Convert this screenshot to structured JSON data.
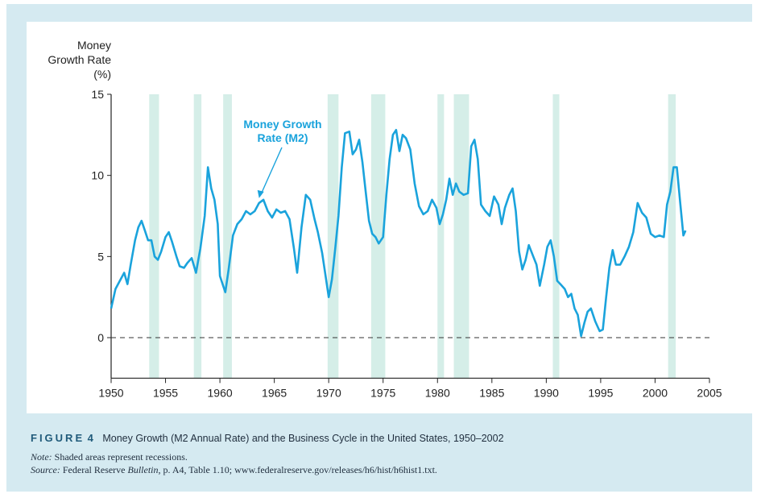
{
  "chart_data": {
    "type": "line",
    "ylabel_lines": [
      "Money",
      "Growth Rate",
      "(%)"
    ],
    "xlim": [
      1950,
      2005
    ],
    "ylim": [
      -2.5,
      15
    ],
    "xticks": [
      1950,
      1955,
      1960,
      1965,
      1970,
      1975,
      1980,
      1985,
      1990,
      1995,
      2000,
      2005
    ],
    "yticks": [
      0,
      5,
      10,
      15
    ],
    "annotation": {
      "lines": [
        "Money Growth",
        "Rate (M2)"
      ]
    },
    "reference_line": {
      "y": 0,
      "style": "dashed"
    },
    "recessions": [
      [
        1953.5,
        1954.4
      ],
      [
        1957.6,
        1958.3
      ],
      [
        1960.3,
        1961.1
      ],
      [
        1969.9,
        1970.9
      ],
      [
        1973.9,
        1975.2
      ],
      [
        1980.0,
        1980.6
      ],
      [
        1981.5,
        1982.9
      ],
      [
        1990.6,
        1991.2
      ],
      [
        2001.2,
        2001.9
      ]
    ],
    "series": [
      {
        "color": "#1aa3dc",
        "points": [
          [
            1950.0,
            1.8
          ],
          [
            1950.4,
            3.0
          ],
          [
            1950.8,
            3.5
          ],
          [
            1951.2,
            4.0
          ],
          [
            1951.5,
            3.3
          ],
          [
            1951.8,
            4.5
          ],
          [
            1952.2,
            6.0
          ],
          [
            1952.5,
            6.8
          ],
          [
            1952.8,
            7.2
          ],
          [
            1953.1,
            6.6
          ],
          [
            1953.4,
            6.0
          ],
          [
            1953.7,
            6.0
          ],
          [
            1954.0,
            5.0
          ],
          [
            1954.3,
            4.8
          ],
          [
            1954.6,
            5.3
          ],
          [
            1955.0,
            6.2
          ],
          [
            1955.3,
            6.5
          ],
          [
            1955.6,
            5.9
          ],
          [
            1956.0,
            5.0
          ],
          [
            1956.3,
            4.4
          ],
          [
            1956.7,
            4.3
          ],
          [
            1957.0,
            4.6
          ],
          [
            1957.4,
            4.9
          ],
          [
            1957.8,
            4.0
          ],
          [
            1958.2,
            5.5
          ],
          [
            1958.6,
            7.5
          ],
          [
            1958.9,
            10.5
          ],
          [
            1959.2,
            9.2
          ],
          [
            1959.5,
            8.5
          ],
          [
            1959.8,
            7.0
          ],
          [
            1960.0,
            3.8
          ],
          [
            1960.3,
            3.2
          ],
          [
            1960.5,
            2.8
          ],
          [
            1960.8,
            4.2
          ],
          [
            1961.2,
            6.3
          ],
          [
            1961.6,
            7.0
          ],
          [
            1962.0,
            7.3
          ],
          [
            1962.4,
            7.8
          ],
          [
            1962.8,
            7.6
          ],
          [
            1963.2,
            7.8
          ],
          [
            1963.6,
            8.3
          ],
          [
            1964.0,
            8.5
          ],
          [
            1964.4,
            7.8
          ],
          [
            1964.8,
            7.4
          ],
          [
            1965.2,
            7.9
          ],
          [
            1965.6,
            7.7
          ],
          [
            1966.0,
            7.8
          ],
          [
            1966.4,
            7.3
          ],
          [
            1966.8,
            5.5
          ],
          [
            1967.1,
            4.0
          ],
          [
            1967.5,
            6.8
          ],
          [
            1967.9,
            8.8
          ],
          [
            1968.3,
            8.5
          ],
          [
            1968.7,
            7.3
          ],
          [
            1969.0,
            6.5
          ],
          [
            1969.4,
            5.2
          ],
          [
            1969.8,
            3.4
          ],
          [
            1970.0,
            2.5
          ],
          [
            1970.3,
            3.6
          ],
          [
            1970.6,
            5.5
          ],
          [
            1970.9,
            7.5
          ],
          [
            1971.2,
            10.5
          ],
          [
            1971.5,
            12.6
          ],
          [
            1971.9,
            12.7
          ],
          [
            1972.2,
            11.3
          ],
          [
            1972.5,
            11.6
          ],
          [
            1972.8,
            12.2
          ],
          [
            1973.1,
            10.8
          ],
          [
            1973.4,
            9.0
          ],
          [
            1973.7,
            7.2
          ],
          [
            1974.0,
            6.4
          ],
          [
            1974.3,
            6.2
          ],
          [
            1974.6,
            5.8
          ],
          [
            1975.0,
            6.2
          ],
          [
            1975.3,
            8.8
          ],
          [
            1975.6,
            11.0
          ],
          [
            1975.9,
            12.5
          ],
          [
            1976.2,
            12.8
          ],
          [
            1976.5,
            11.5
          ],
          [
            1976.8,
            12.5
          ],
          [
            1977.1,
            12.3
          ],
          [
            1977.5,
            11.6
          ],
          [
            1977.9,
            9.5
          ],
          [
            1978.3,
            8.1
          ],
          [
            1978.7,
            7.6
          ],
          [
            1979.1,
            7.8
          ],
          [
            1979.5,
            8.5
          ],
          [
            1979.9,
            8.0
          ],
          [
            1980.2,
            7.0
          ],
          [
            1980.5,
            7.6
          ],
          [
            1980.8,
            8.5
          ],
          [
            1981.1,
            9.8
          ],
          [
            1981.4,
            8.8
          ],
          [
            1981.7,
            9.5
          ],
          [
            1982.0,
            9.0
          ],
          [
            1982.4,
            8.8
          ],
          [
            1982.8,
            8.9
          ],
          [
            1983.1,
            11.8
          ],
          [
            1983.4,
            12.2
          ],
          [
            1983.7,
            11.0
          ],
          [
            1984.0,
            8.2
          ],
          [
            1984.4,
            7.8
          ],
          [
            1984.8,
            7.5
          ],
          [
            1985.2,
            8.7
          ],
          [
            1985.6,
            8.2
          ],
          [
            1985.9,
            7.0
          ],
          [
            1986.2,
            8.0
          ],
          [
            1986.6,
            8.8
          ],
          [
            1986.9,
            9.2
          ],
          [
            1987.2,
            7.8
          ],
          [
            1987.5,
            5.3
          ],
          [
            1987.8,
            4.2
          ],
          [
            1988.1,
            4.8
          ],
          [
            1988.4,
            5.7
          ],
          [
            1988.8,
            5.0
          ],
          [
            1989.1,
            4.5
          ],
          [
            1989.4,
            3.2
          ],
          [
            1989.8,
            4.5
          ],
          [
            1990.1,
            5.6
          ],
          [
            1990.4,
            6.0
          ],
          [
            1990.7,
            5.0
          ],
          [
            1991.0,
            3.5
          ],
          [
            1991.3,
            3.3
          ],
          [
            1991.7,
            3.0
          ],
          [
            1992.0,
            2.5
          ],
          [
            1992.3,
            2.7
          ],
          [
            1992.6,
            1.8
          ],
          [
            1992.9,
            1.4
          ],
          [
            1993.2,
            0.1
          ],
          [
            1993.5,
            0.9
          ],
          [
            1993.8,
            1.6
          ],
          [
            1994.1,
            1.8
          ],
          [
            1994.5,
            1.0
          ],
          [
            1994.9,
            0.4
          ],
          [
            1995.2,
            0.5
          ],
          [
            1995.5,
            2.5
          ],
          [
            1995.8,
            4.3
          ],
          [
            1996.1,
            5.4
          ],
          [
            1996.4,
            4.5
          ],
          [
            1996.8,
            4.5
          ],
          [
            1997.2,
            5.0
          ],
          [
            1997.6,
            5.6
          ],
          [
            1998.0,
            6.5
          ],
          [
            1998.4,
            8.3
          ],
          [
            1998.8,
            7.7
          ],
          [
            1999.2,
            7.4
          ],
          [
            1999.6,
            6.4
          ],
          [
            2000.0,
            6.2
          ],
          [
            2000.4,
            6.3
          ],
          [
            2000.8,
            6.2
          ],
          [
            2001.1,
            8.2
          ],
          [
            2001.4,
            9.0
          ],
          [
            2001.7,
            10.5
          ],
          [
            2002.0,
            10.5
          ],
          [
            2002.3,
            8.4
          ],
          [
            2002.6,
            6.3
          ],
          [
            2002.8,
            6.6
          ]
        ]
      }
    ]
  },
  "caption": {
    "label": "FIGURE",
    "number": "4",
    "title": "Money Growth (M2 Annual Rate) and the Business Cycle in the United States, 1950–2002",
    "note_label": "Note:",
    "note_text": " Shaded areas represent recessions.",
    "source_label": "Source:",
    "source_text_1": " Federal Reserve ",
    "source_italic": "Bulletin",
    "source_text_2": ", p. A4, Table 1.10; www.federalreserve.gov/releases/h6/hist/h6hist1.txt."
  },
  "colors": {
    "line": "#1aa3dc",
    "recession": "#d5eee8",
    "frame": "#d5eaf1"
  }
}
